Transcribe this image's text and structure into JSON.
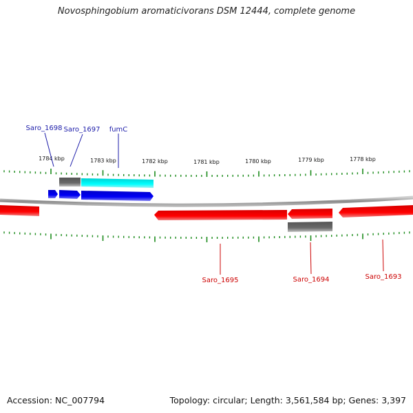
{
  "title": "Novosphingobium aromaticivorans DSM 12444, complete genome",
  "footer": {
    "accession": "Accession: NC_007794",
    "summary": "Topology: circular; Length: 3,561,584 bp; Genes: 3,397"
  },
  "scale_labels": [
    "1784 kbp",
    "1783 kbp",
    "1782 kbp",
    "1781 kbp",
    "1780 kbp",
    "1779 kbp",
    "1778 kbp"
  ],
  "genes": [
    {
      "label": "Saro_1698",
      "strand": "forward",
      "color": "#1a1aa8"
    },
    {
      "label": "Saro_1697",
      "strand": "forward",
      "color": "#1a1aa8"
    },
    {
      "label": "fumC",
      "strand": "forward",
      "color": "#1a1aa8"
    },
    {
      "label": "Saro_1695",
      "strand": "reverse",
      "color": "#cc0000"
    },
    {
      "label": "Saro_1694",
      "strand": "reverse",
      "color": "#cc0000"
    },
    {
      "label": "Saro_1693",
      "strand": "reverse",
      "color": "#cc0000"
    }
  ],
  "colors": {
    "forward_cds": "#0000ee",
    "reverse_cds": "#ee0000",
    "rna_feature": "#00d8d8",
    "other_feature": "#666666",
    "tick": "#1a8a1a",
    "backbone": "#888888"
  }
}
